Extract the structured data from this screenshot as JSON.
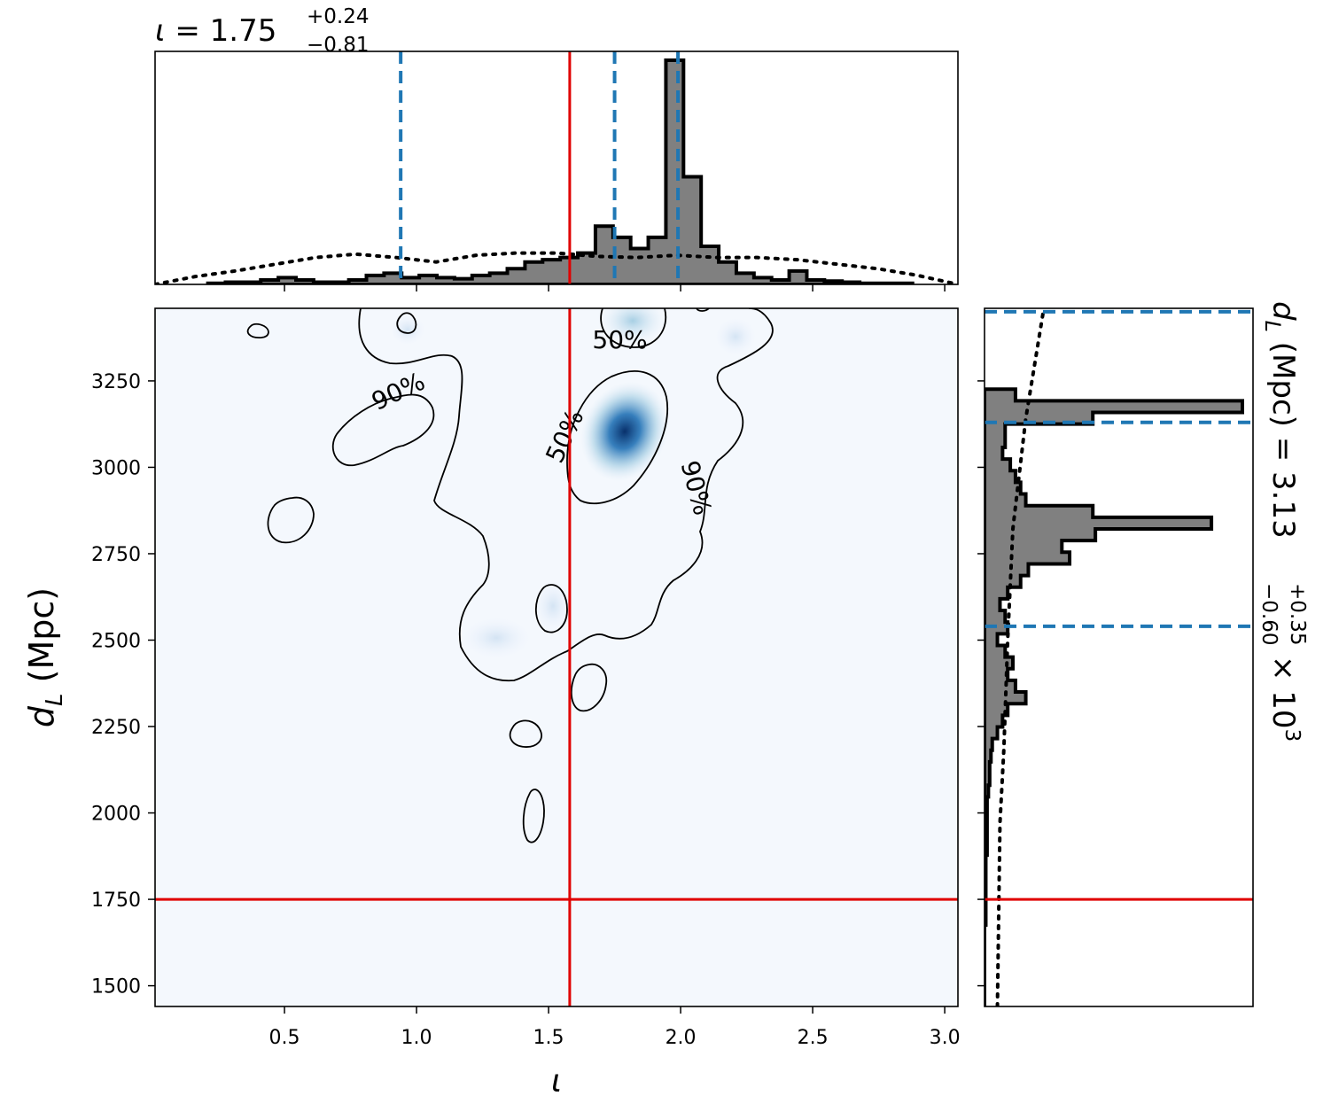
{
  "chart_data": {
    "type": "corner-2d",
    "title_iota": {
      "symbol": "ι",
      "value": "1.75",
      "plus": "+0.24",
      "minus": "−0.81"
    },
    "dl_label": {
      "prefix": "d",
      "sub": "L",
      "unit": "(Mpc)",
      "value": "3.13",
      "plus": "+0.35",
      "minus": "−0.60",
      "times": "× 10",
      "exp": "3"
    },
    "xlabel": "ι",
    "ylabel": {
      "prefix": "d",
      "sub": "L",
      "unit": "(Mpc)"
    },
    "xlim": [
      0.01,
      3.05
    ],
    "ylim": [
      1440,
      3460
    ],
    "xticks": [
      0.5,
      1.0,
      1.5,
      2.0,
      2.5,
      3.0
    ],
    "xtick_labels": [
      "0.5",
      "1.0",
      "1.5",
      "2.0",
      "2.5",
      "3.0"
    ],
    "yticks": [
      1500,
      1750,
      2000,
      2250,
      2500,
      2750,
      3000,
      3250
    ],
    "ytick_labels": [
      "1500",
      "1750",
      "2000",
      "2250",
      "2500",
      "2750",
      "3000",
      "3250"
    ],
    "injection": {
      "iota": 1.58,
      "dl": 1750,
      "color": "#e00000"
    },
    "quantiles_iota": [
      0.94,
      1.75,
      1.99
    ],
    "quantiles_dl": [
      2540,
      3130,
      3450
    ],
    "quantile_color": "#1f77b4",
    "iota_hist": {
      "bin_width": 0.0667,
      "edges_start": 0.21,
      "heights": [
        0.005,
        0.01,
        0.01,
        0.02,
        0.03,
        0.02,
        0.01,
        0.01,
        0.02,
        0.04,
        0.05,
        0.03,
        0.04,
        0.03,
        0.025,
        0.04,
        0.05,
        0.07,
        0.1,
        0.11,
        0.12,
        0.14,
        0.26,
        0.21,
        0.16,
        0.21,
        1.0,
        0.48,
        0.17,
        0.1,
        0.05,
        0.03,
        0.02,
        0.06,
        0.02,
        0.015,
        0.01,
        0.005,
        0.005,
        0.005
      ],
      "prior": [
        0.0,
        0.035,
        0.06,
        0.09,
        0.12,
        0.135,
        0.12,
        0.1,
        0.13,
        0.14,
        0.14,
        0.125,
        0.12,
        0.13,
        0.12,
        0.12,
        0.11,
        0.09,
        0.07,
        0.04,
        0.0
      ]
    },
    "dl_hist": {
      "bin_width": 33.7,
      "edges_start": 1440,
      "heights": [
        0.0,
        0.0,
        0.0,
        0.0,
        0.0,
        0.0,
        0.0,
        0.005,
        0.005,
        0.005,
        0.005,
        0.005,
        0.005,
        0.01,
        0.01,
        0.01,
        0.01,
        0.01,
        0.015,
        0.02,
        0.02,
        0.025,
        0.03,
        0.05,
        0.07,
        0.09,
        0.16,
        0.12,
        0.09,
        0.11,
        0.08,
        0.05,
        0.09,
        0.08,
        0.06,
        0.09,
        0.14,
        0.17,
        0.33,
        0.3,
        0.43,
        0.88,
        0.42,
        0.16,
        0.14,
        0.12,
        0.1,
        0.07,
        0.08,
        0.08,
        0.42,
        1.0,
        0.12
      ],
      "prior": [
        [
          1.0,
          0.05
        ],
        [
          0.5,
          0.06
        ],
        [
          0.3,
          0.075
        ],
        [
          0.0,
          0.09
        ],
        [
          -0.3,
          0.11
        ],
        [
          -0.6,
          0.16
        ],
        [
          -0.9,
          0.23
        ]
      ]
    },
    "contour_labels": [
      {
        "text": "50%",
        "x": 1.77,
        "y": 3345,
        "rot": 0
      },
      {
        "text": "50%",
        "x": 1.56,
        "y": 3065,
        "rot": -65
      },
      {
        "text": "90%",
        "x": 0.93,
        "y": 3195,
        "rot": -25
      },
      {
        "text": "90%",
        "x": 2.06,
        "y": 2915,
        "rot": 75
      }
    ]
  }
}
